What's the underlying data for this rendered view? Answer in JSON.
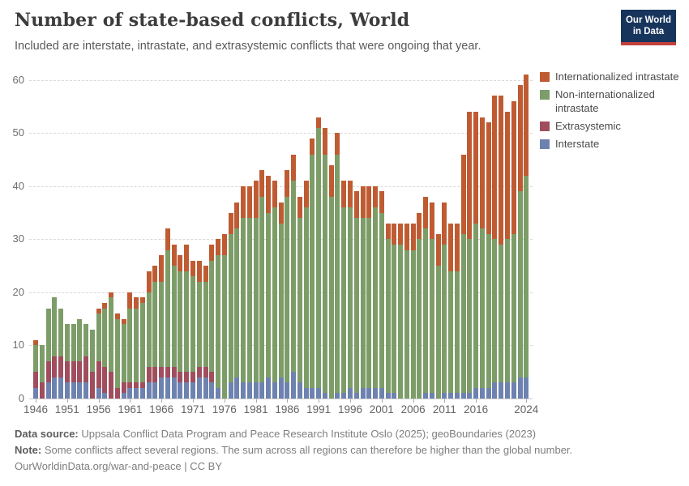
{
  "header": {
    "title": "Number of state-based conflicts, World",
    "subtitle": "Included are interstate, intrastate, and extrasystemic conflicts that were ongoing that year.",
    "logo_line1": "Our World",
    "logo_line2": "in Data"
  },
  "colors": {
    "internationalized_intrastate": "#bf5b32",
    "non_internationalized_intrastate": "#7d9d68",
    "extrasystemic": "#a04d5e",
    "interstate": "#6e82b0",
    "logo_navy": "#17355c",
    "logo_red": "#c4403a",
    "grid": "#d9d9d9"
  },
  "legend": {
    "items": [
      {
        "label": "Internationalized intrastate",
        "color": "#bf5b32"
      },
      {
        "label": "Non-internationalized intrastate",
        "color": "#7d9d68"
      },
      {
        "label": "Extrasystemic",
        "color": "#a04d5e"
      },
      {
        "label": "Interstate",
        "color": "#6e82b0"
      }
    ]
  },
  "chart_data": {
    "type": "bar",
    "stacked": true,
    "title": "Number of state-based conflicts, World",
    "xlabel": "",
    "ylabel": "",
    "ylim": [
      0,
      62
    ],
    "yticks": [
      0,
      10,
      20,
      30,
      40,
      50,
      60
    ],
    "xticks": [
      1946,
      1951,
      1956,
      1961,
      1966,
      1971,
      1976,
      1981,
      1986,
      1991,
      1996,
      2001,
      2006,
      2011,
      2016,
      2024
    ],
    "grid": "dashed-horizontal",
    "legend_position": "right-top",
    "x": [
      1946,
      1947,
      1948,
      1949,
      1950,
      1951,
      1952,
      1953,
      1954,
      1955,
      1956,
      1957,
      1958,
      1959,
      1960,
      1961,
      1962,
      1963,
      1964,
      1965,
      1966,
      1967,
      1968,
      1969,
      1970,
      1971,
      1972,
      1973,
      1974,
      1975,
      1976,
      1977,
      1978,
      1979,
      1980,
      1981,
      1982,
      1983,
      1984,
      1985,
      1986,
      1987,
      1988,
      1989,
      1990,
      1991,
      1992,
      1993,
      1994,
      1995,
      1996,
      1997,
      1998,
      1999,
      2000,
      2001,
      2002,
      2003,
      2004,
      2005,
      2006,
      2007,
      2008,
      2009,
      2010,
      2011,
      2012,
      2013,
      2014,
      2015,
      2016,
      2017,
      2018,
      2019,
      2020,
      2021,
      2022,
      2023,
      2024
    ],
    "series_note": "series listed bottom-to-top of the stack",
    "series": [
      {
        "name": "Interstate",
        "color": "#6e82b0",
        "values": [
          2,
          0,
          3,
          4,
          4,
          3,
          3,
          3,
          3,
          0,
          2,
          1,
          0,
          0,
          1,
          2,
          2,
          2,
          3,
          3,
          4,
          4,
          4,
          3,
          3,
          3,
          4,
          4,
          3,
          2,
          0,
          3,
          4,
          3,
          3,
          3,
          3,
          4,
          3,
          4,
          3,
          5,
          3,
          2,
          2,
          2,
          1,
          0,
          1,
          1,
          2,
          1,
          2,
          2,
          2,
          2,
          1,
          1,
          0,
          0,
          0,
          0,
          1,
          1,
          0,
          1,
          1,
          1,
          1,
          1,
          2,
          2,
          2,
          3,
          3,
          3,
          3,
          4,
          4
        ]
      },
      {
        "name": "Extrasystemic",
        "color": "#a04d5e",
        "values": [
          3,
          3,
          4,
          4,
          4,
          4,
          4,
          4,
          5,
          5,
          5,
          5,
          5,
          2,
          2,
          1,
          1,
          1,
          3,
          3,
          2,
          2,
          2,
          2,
          2,
          2,
          2,
          2,
          2,
          0,
          0,
          0,
          0,
          0,
          0,
          0,
          0,
          0,
          0,
          0,
          0,
          0,
          0,
          0,
          0,
          0,
          0,
          0,
          0,
          0,
          0,
          0,
          0,
          0,
          0,
          0,
          0,
          0,
          0,
          0,
          0,
          0,
          0,
          0,
          0,
          0,
          0,
          0,
          0,
          0,
          0,
          0,
          0,
          0,
          0,
          0,
          0,
          0,
          0
        ]
      },
      {
        "name": "Non-internationalized intrastate",
        "color": "#7d9d68",
        "values": [
          5,
          7,
          10,
          11,
          9,
          7,
          7,
          8,
          6,
          8,
          9,
          11,
          14,
          13,
          11,
          14,
          14,
          15,
          14,
          16,
          16,
          22,
          19,
          19,
          19,
          18,
          16,
          16,
          21,
          25,
          27,
          28,
          28,
          31,
          31,
          31,
          35,
          31,
          33,
          29,
          35,
          36,
          31,
          34,
          44,
          49,
          45,
          38,
          45,
          35,
          34,
          33,
          32,
          32,
          34,
          33,
          29,
          28,
          29,
          28,
          28,
          30,
          31,
          29,
          25,
          28,
          23,
          23,
          30,
          29,
          31,
          30,
          29,
          27,
          26,
          27,
          28,
          35,
          38
        ]
      },
      {
        "name": "Internationalized intrastate",
        "color": "#bf5b32",
        "values": [
          1,
          0,
          0,
          0,
          0,
          0,
          0,
          0,
          0,
          0,
          1,
          1,
          1,
          1,
          1,
          3,
          2,
          1,
          4,
          3,
          5,
          4,
          4,
          3,
          5,
          3,
          4,
          3,
          3,
          3,
          4,
          4,
          5,
          6,
          6,
          7,
          5,
          7,
          5,
          4,
          5,
          5,
          4,
          5,
          3,
          2,
          5,
          6,
          4,
          5,
          5,
          5,
          6,
          6,
          4,
          4,
          3,
          4,
          4,
          5,
          5,
          5,
          6,
          7,
          6,
          8,
          9,
          9,
          15,
          24,
          21,
          21,
          21,
          27,
          28,
          24,
          25,
          20,
          19
        ]
      }
    ]
  },
  "footer": {
    "source_label": "Data source:",
    "source_text": " Uppsala Conflict Data Program and Peace Research Institute Oslo (2025); geoBoundaries (2023)",
    "note_label": "Note:",
    "note_text": " Some conflicts affect several regions. The sum across all regions can therefore be higher than the global number.",
    "link_text": "OurWorldinData.org/war-and-peace | CC BY"
  }
}
